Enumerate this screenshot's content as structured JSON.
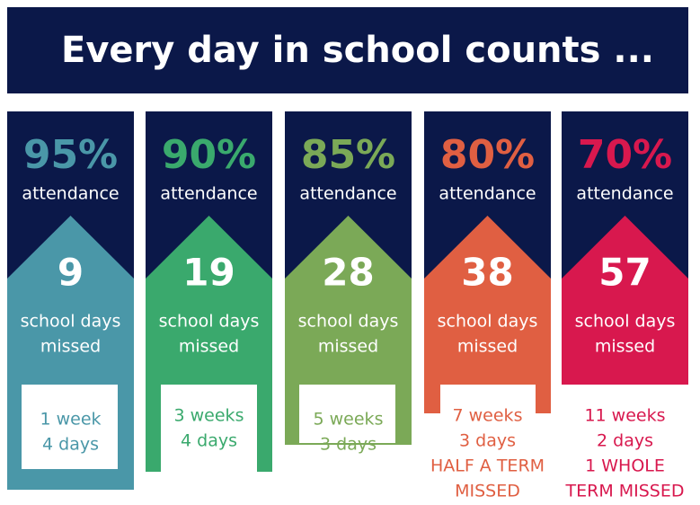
{
  "title": "Every day in school counts ...",
  "columns": [
    {
      "percent": "95%",
      "label": "attendance",
      "days": "9",
      "days_label": [
        "school days",
        "missed"
      ],
      "detail": [
        "1 week",
        "4 days"
      ],
      "color": "#4a97a8"
    },
    {
      "percent": "90%",
      "label": "attendance",
      "days": "19",
      "days_label": [
        "school days",
        "missed"
      ],
      "detail": [
        "3 weeks",
        "4 days"
      ],
      "color": "#3aa96d"
    },
    {
      "percent": "85%",
      "label": "attendance",
      "days": "28",
      "days_label": [
        "school days",
        "missed"
      ],
      "detail": [
        "5 weeks",
        "3 days"
      ],
      "color": "#7ba957"
    },
    {
      "percent": "80%",
      "label": "attendance",
      "days": "38",
      "days_label": [
        "school days",
        "missed"
      ],
      "detail": [
        "7 weeks",
        "3 days",
        "HALF A TERM",
        "MISSED"
      ],
      "color": "#e05f42"
    },
    {
      "percent": "70%",
      "label": "attendance",
      "days": "57",
      "days_label": [
        "school days",
        "missed"
      ],
      "detail": [
        "11 weeks",
        "2 days",
        "1 WHOLE",
        "TERM MISSED"
      ],
      "color": "#d8184e"
    }
  ]
}
